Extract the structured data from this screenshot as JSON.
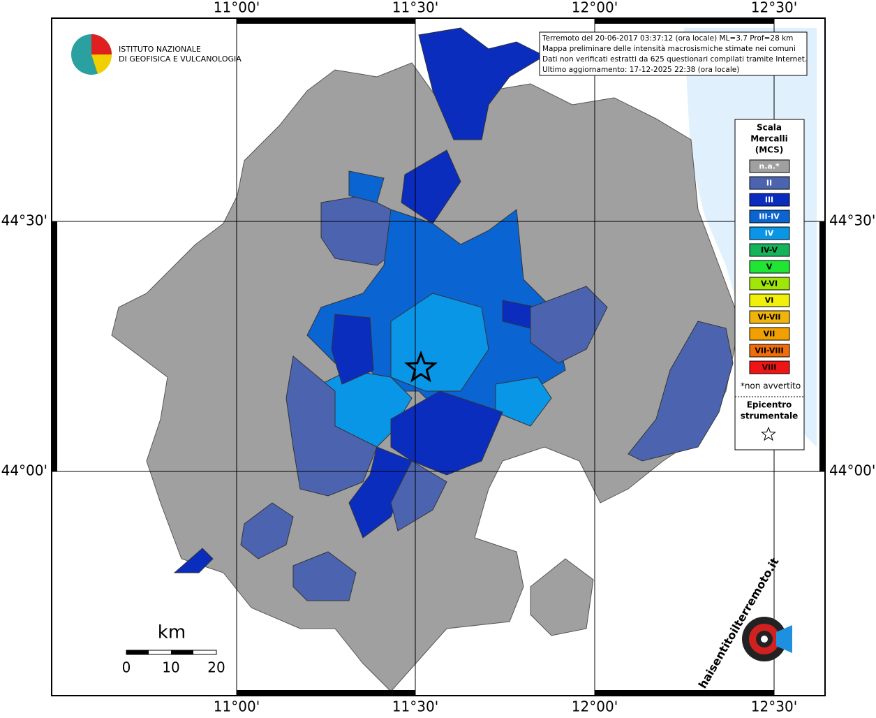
{
  "map": {
    "lon_labels": [
      "11°00'",
      "11°30'",
      "12°00'",
      "12°30'"
    ],
    "lat_labels": [
      "44°30'",
      "44°00'"
    ],
    "institute": [
      "ISTITUTO NAZIONALE",
      "DI GEOFISICA E VULCANOLOGIA"
    ],
    "info": [
      "Terremoto del 20-06-2017 03:37:12 (ora locale) ML=3.7 Prof=28 km",
      "Mappa preliminare delle intensità macrosismiche stimate nei comuni",
      "Dati non verificati estratti da 625 questionari compilati tramite Internet.",
      "Ultimo aggiornamento: 17-12-2025 22:38 (ora locale)"
    ],
    "legend": {
      "title": [
        "Scala",
        "Mercalli",
        "(MCS)"
      ],
      "items": [
        {
          "name": "n.a.*",
          "color": "#a0a0a0"
        },
        {
          "name": "II",
          "color": "#4c64b0"
        },
        {
          "name": "III",
          "color": "#0a2dbe"
        },
        {
          "name": "III-IV",
          "color": "#0a64d2"
        },
        {
          "name": "IV",
          "color": "#0a96e6"
        },
        {
          "name": "IV-V",
          "color": "#14b45a"
        },
        {
          "name": "V",
          "color": "#1ee632"
        },
        {
          "name": "V-VI",
          "color": "#a0e60a"
        },
        {
          "name": "VI",
          "color": "#f0f00a"
        },
        {
          "name": "VI-VII",
          "color": "#f0b40a"
        },
        {
          "name": "VII",
          "color": "#f0a000"
        },
        {
          "name": "VII-VIII",
          "color": "#f06e0a"
        },
        {
          "name": "VIII",
          "color": "#f01414"
        }
      ],
      "note": "*non avvertito",
      "epicenter": [
        "Epicentro",
        "strumentale"
      ]
    },
    "scale": {
      "unit": "km",
      "ticks": [
        0,
        10,
        20
      ]
    },
    "site": "haisentitoilterremoto.it"
  }
}
